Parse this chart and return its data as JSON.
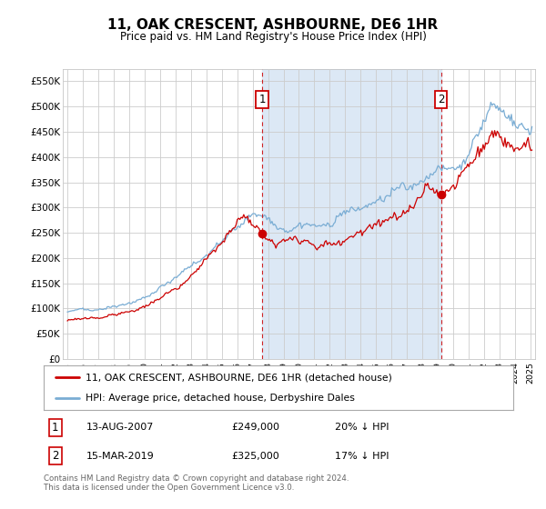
{
  "title": "11, OAK CRESCENT, ASHBOURNE, DE6 1HR",
  "subtitle": "Price paid vs. HM Land Registry's House Price Index (HPI)",
  "ylim": [
    0,
    575000
  ],
  "yticks": [
    0,
    50000,
    100000,
    150000,
    200000,
    250000,
    300000,
    350000,
    400000,
    450000,
    500000,
    550000
  ],
  "ytick_labels": [
    "£0",
    "£50K",
    "£100K",
    "£150K",
    "£200K",
    "£250K",
    "£300K",
    "£350K",
    "£400K",
    "£450K",
    "£500K",
    "£550K"
  ],
  "background_color": "#ffffff",
  "shaded_color": "#dce8f5",
  "sale1_date": "13-AUG-2007",
  "sale1_price": 249000,
  "sale1_pct": "20% ↓ HPI",
  "sale1_year": 2007.62,
  "sale2_date": "15-MAR-2019",
  "sale2_price": 325000,
  "sale2_pct": "17% ↓ HPI",
  "sale2_year": 2019.21,
  "legend_label_red": "11, OAK CRESCENT, ASHBOURNE, DE6 1HR (detached house)",
  "legend_label_blue": "HPI: Average price, detached house, Derbyshire Dales",
  "footer_text": "Contains HM Land Registry data © Crown copyright and database right 2024.\nThis data is licensed under the Open Government Licence v3.0.",
  "line_color_red": "#cc0000",
  "line_color_blue": "#7aadd4",
  "marker_box_color": "#cc0000",
  "grid_color": "#cccccc",
  "xlim_left": 1994.7,
  "xlim_right": 2025.3
}
